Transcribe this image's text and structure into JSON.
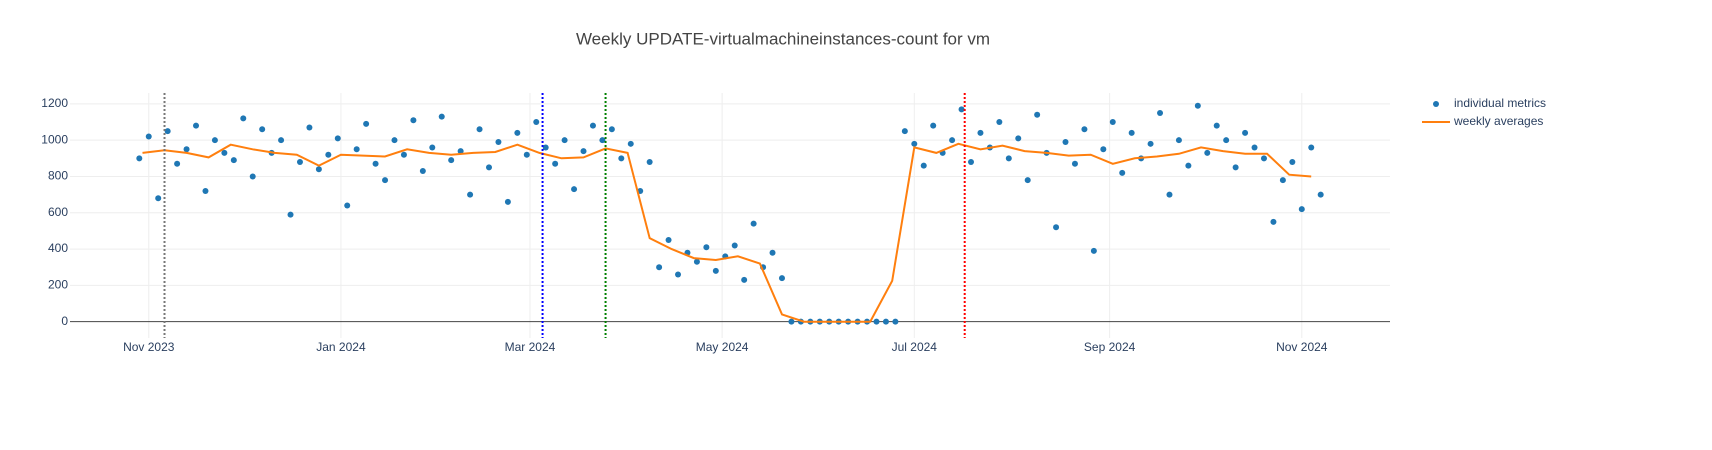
{
  "chart_data": {
    "type": "scatter",
    "title": "Weekly UPDATE-virtualmachineinstances-count for vm",
    "xlim": [
      "2023-10-07",
      "2024-11-29"
    ],
    "ylim": [
      -90,
      1260
    ],
    "yticks": [
      0,
      200,
      400,
      600,
      800,
      1000,
      1200
    ],
    "xticks": [
      {
        "value": "2023-11-01",
        "label": "Nov 2023"
      },
      {
        "value": "2024-01-01",
        "label": "Jan 2024"
      },
      {
        "value": "2024-03-01",
        "label": "Mar 2024"
      },
      {
        "value": "2024-05-01",
        "label": "May 2024"
      },
      {
        "value": "2024-07-01",
        "label": "Jul 2024"
      },
      {
        "value": "2024-09-01",
        "label": "Sep 2024"
      },
      {
        "value": "2024-11-01",
        "label": "Nov 2024"
      }
    ],
    "grid": true,
    "legend": "top-right",
    "vlines": [
      {
        "x": "2023-11-06",
        "color": "#777777"
      },
      {
        "x": "2024-03-05",
        "color": "#0000ff"
      },
      {
        "x": "2024-03-25",
        "color": "#008000"
      },
      {
        "x": "2024-07-17",
        "color": "#ff0000"
      }
    ],
    "series": [
      {
        "name": "individual metrics",
        "mode": "markers",
        "color": "#1f77b4",
        "x": [
          "2023-10-29",
          "2023-11-01",
          "2023-11-04",
          "2023-11-07",
          "2023-11-10",
          "2023-11-13",
          "2023-11-16",
          "2023-11-19",
          "2023-11-22",
          "2023-11-25",
          "2023-11-28",
          "2023-12-01",
          "2023-12-04",
          "2023-12-07",
          "2023-12-10",
          "2023-12-13",
          "2023-12-16",
          "2023-12-19",
          "2023-12-22",
          "2023-12-25",
          "2023-12-28",
          "2023-12-31",
          "2024-01-03",
          "2024-01-06",
          "2024-01-09",
          "2024-01-12",
          "2024-01-15",
          "2024-01-18",
          "2024-01-21",
          "2024-01-24",
          "2024-01-27",
          "2024-01-30",
          "2024-02-02",
          "2024-02-05",
          "2024-02-08",
          "2024-02-11",
          "2024-02-14",
          "2024-02-17",
          "2024-02-20",
          "2024-02-23",
          "2024-02-26",
          "2024-02-29",
          "2024-03-03",
          "2024-03-06",
          "2024-03-09",
          "2024-03-12",
          "2024-03-15",
          "2024-03-18",
          "2024-03-21",
          "2024-03-24",
          "2024-03-27",
          "2024-03-30",
          "2024-04-02",
          "2024-04-05",
          "2024-04-08",
          "2024-04-11",
          "2024-04-14",
          "2024-04-17",
          "2024-04-20",
          "2024-04-23",
          "2024-04-26",
          "2024-04-29",
          "2024-05-02",
          "2024-05-05",
          "2024-05-08",
          "2024-05-11",
          "2024-05-14",
          "2024-05-17",
          "2024-05-20",
          "2024-05-23",
          "2024-05-26",
          "2024-05-29",
          "2024-06-01",
          "2024-06-04",
          "2024-06-07",
          "2024-06-10",
          "2024-06-13",
          "2024-06-16",
          "2024-06-19",
          "2024-06-22",
          "2024-06-25",
          "2024-06-28",
          "2024-07-01",
          "2024-07-04",
          "2024-07-07",
          "2024-07-10",
          "2024-07-13",
          "2024-07-16",
          "2024-07-19",
          "2024-07-22",
          "2024-07-25",
          "2024-07-28",
          "2024-07-31",
          "2024-08-03",
          "2024-08-06",
          "2024-08-09",
          "2024-08-12",
          "2024-08-15",
          "2024-08-18",
          "2024-08-21",
          "2024-08-24",
          "2024-08-27",
          "2024-08-30",
          "2024-09-02",
          "2024-09-05",
          "2024-09-08",
          "2024-09-11",
          "2024-09-14",
          "2024-09-17",
          "2024-09-20",
          "2024-09-23",
          "2024-09-26",
          "2024-09-29",
          "2024-10-02",
          "2024-10-05",
          "2024-10-08",
          "2024-10-11",
          "2024-10-14",
          "2024-10-17",
          "2024-10-20",
          "2024-10-23",
          "2024-10-26",
          "2024-10-29",
          "2024-11-01",
          "2024-11-04",
          "2024-11-07"
        ],
        "values": [
          900,
          1020,
          680,
          1050,
          870,
          950,
          1080,
          720,
          1000,
          930,
          890,
          1120,
          800,
          1060,
          930,
          1000,
          590,
          880,
          1070,
          840,
          920,
          1010,
          640,
          950,
          1090,
          870,
          780,
          1000,
          920,
          1110,
          830,
          960,
          1130,
          890,
          940,
          700,
          1060,
          850,
          990,
          660,
          1040,
          920,
          1100,
          960,
          870,
          1000,
          730,
          940,
          1080,
          1000,
          1060,
          900,
          980,
          720,
          880,
          300,
          450,
          260,
          380,
          330,
          410,
          280,
          360,
          420,
          230,
          540,
          300,
          380,
          240,
          0,
          0,
          0,
          0,
          0,
          0,
          0,
          0,
          0,
          0,
          0,
          0,
          1050,
          980,
          860,
          1080,
          930,
          1000,
          1170,
          880,
          1040,
          960,
          1100,
          900,
          1010,
          780,
          1140,
          930,
          520,
          990,
          870,
          1060,
          390,
          950,
          1100,
          820,
          1040,
          900,
          980,
          1150,
          700,
          1000,
          860,
          1190,
          930,
          1080,
          1000,
          850,
          1040,
          960,
          900,
          550,
          780,
          880,
          620,
          960,
          700
        ]
      },
      {
        "name": "weekly averages",
        "mode": "lines",
        "color": "#ff7f0e",
        "x": [
          "2023-10-30",
          "2023-11-06",
          "2023-11-13",
          "2023-11-20",
          "2023-11-27",
          "2023-12-04",
          "2023-12-11",
          "2023-12-18",
          "2023-12-25",
          "2024-01-01",
          "2024-01-08",
          "2024-01-15",
          "2024-01-22",
          "2024-01-29",
          "2024-02-05",
          "2024-02-12",
          "2024-02-19",
          "2024-02-26",
          "2024-03-04",
          "2024-03-11",
          "2024-03-18",
          "2024-03-25",
          "2024-04-01",
          "2024-04-08",
          "2024-04-15",
          "2024-04-22",
          "2024-04-29",
          "2024-05-06",
          "2024-05-13",
          "2024-05-20",
          "2024-05-27",
          "2024-06-03",
          "2024-06-10",
          "2024-06-17",
          "2024-06-24",
          "2024-07-01",
          "2024-07-08",
          "2024-07-15",
          "2024-07-22",
          "2024-07-29",
          "2024-08-05",
          "2024-08-12",
          "2024-08-19",
          "2024-08-26",
          "2024-09-02",
          "2024-09-09",
          "2024-09-16",
          "2024-09-23",
          "2024-09-30",
          "2024-10-07",
          "2024-10-14",
          "2024-10-21",
          "2024-10-28",
          "2024-11-04"
        ],
        "values": [
          930,
          945,
          930,
          905,
          975,
          950,
          930,
          920,
          860,
          920,
          915,
          910,
          950,
          930,
          920,
          930,
          935,
          975,
          930,
          900,
          905,
          955,
          930,
          460,
          400,
          350,
          340,
          360,
          320,
          40,
          0,
          0,
          0,
          0,
          225,
          960,
          930,
          980,
          950,
          970,
          940,
          930,
          915,
          920,
          870,
          900,
          910,
          925,
          960,
          940,
          925,
          925,
          810,
          800
        ]
      }
    ]
  }
}
